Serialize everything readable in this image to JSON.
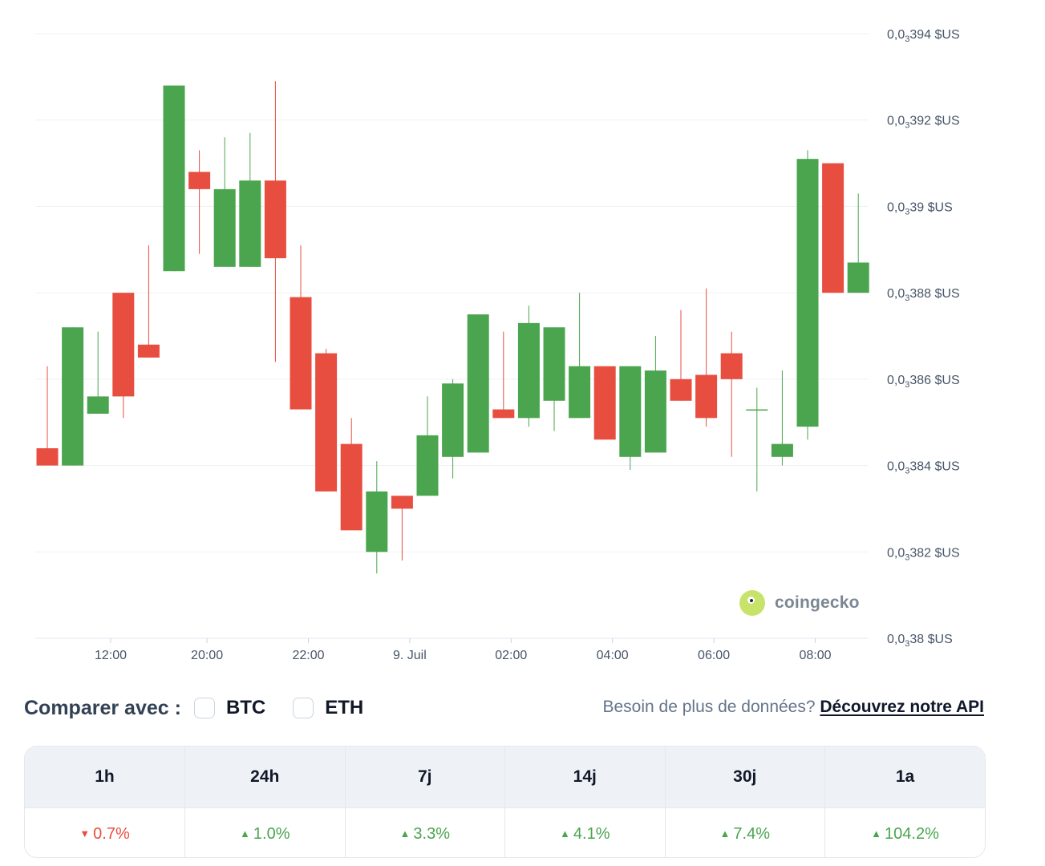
{
  "chart_data": {
    "type": "candlestick",
    "y_axis": {
      "labels": [
        {
          "value": 0.03394,
          "text": "0,0",
          "sub": "3",
          "rest": "394 $US"
        },
        {
          "value": 0.03392,
          "text": "0,0",
          "sub": "3",
          "rest": "392 $US"
        },
        {
          "value": 0.0339,
          "text": "0,0",
          "sub": "3",
          "rest": "39 $US"
        },
        {
          "value": 0.03388,
          "text": "0,0",
          "sub": "3",
          "rest": "388 $US"
        },
        {
          "value": 0.03386,
          "text": "0,0",
          "sub": "3",
          "rest": "386 $US"
        },
        {
          "value": 0.03384,
          "text": "0,0",
          "sub": "3",
          "rest": "384 $US"
        },
        {
          "value": 0.03382,
          "text": "0,0",
          "sub": "3",
          "rest": "382 $US"
        },
        {
          "value": 0.0338,
          "text": "0,0",
          "sub": "3",
          "rest": "38 $US"
        }
      ],
      "range": [
        0.0338,
        0.03394
      ]
    },
    "x_axis": {
      "ticks": [
        {
          "label": "12:00",
          "index": 2.5
        },
        {
          "label": "20:00",
          "index": 6.3
        },
        {
          "label": "22:00",
          "index": 10.3
        },
        {
          "label": "9. Juil",
          "index": 14.3
        },
        {
          "label": "02:00",
          "index": 18.3
        },
        {
          "label": "04:00",
          "index": 22.3
        },
        {
          "label": "06:00",
          "index": 26.3
        },
        {
          "label": "08:00",
          "index": 30.3
        }
      ]
    },
    "candles": [
      {
        "o": 0.033844,
        "c": 0.03384,
        "h": 0.033863,
        "l": 0.03384
      },
      {
        "o": 0.03384,
        "c": 0.033872,
        "h": 0.033872,
        "l": 0.03384
      },
      {
        "o": 0.033852,
        "c": 0.033856,
        "h": 0.033871,
        "l": 0.033852
      },
      {
        "o": 0.03388,
        "c": 0.033856,
        "h": 0.03388,
        "l": 0.033851
      },
      {
        "o": 0.033868,
        "c": 0.033865,
        "h": 0.033891,
        "l": 0.033865
      },
      {
        "o": 0.033885,
        "c": 0.033928,
        "h": 0.033928,
        "l": 0.033885
      },
      {
        "o": 0.033908,
        "c": 0.033904,
        "h": 0.033913,
        "l": 0.033889
      },
      {
        "o": 0.033886,
        "c": 0.033904,
        "h": 0.033916,
        "l": 0.033886
      },
      {
        "o": 0.033886,
        "c": 0.033906,
        "h": 0.033917,
        "l": 0.033886
      },
      {
        "o": 0.033906,
        "c": 0.033888,
        "h": 0.033929,
        "l": 0.033864
      },
      {
        "o": 0.033879,
        "c": 0.033853,
        "h": 0.033891,
        "l": 0.033853
      },
      {
        "o": 0.033866,
        "c": 0.033834,
        "h": 0.033867,
        "l": 0.033834
      },
      {
        "o": 0.033845,
        "c": 0.033825,
        "h": 0.033851,
        "l": 0.033825
      },
      {
        "o": 0.03382,
        "c": 0.033834,
        "h": 0.033841,
        "l": 0.033815
      },
      {
        "o": 0.033833,
        "c": 0.03383,
        "h": 0.033833,
        "l": 0.033818
      },
      {
        "o": 0.033833,
        "c": 0.033847,
        "h": 0.033856,
        "l": 0.033833
      },
      {
        "o": 0.033842,
        "c": 0.033859,
        "h": 0.03386,
        "l": 0.033837
      },
      {
        "o": 0.033843,
        "c": 0.033875,
        "h": 0.033875,
        "l": 0.033843
      },
      {
        "o": 0.033853,
        "c": 0.033851,
        "h": 0.033871,
        "l": 0.033851
      },
      {
        "o": 0.033851,
        "c": 0.033873,
        "h": 0.033877,
        "l": 0.033849
      },
      {
        "o": 0.033855,
        "c": 0.033872,
        "h": 0.033872,
        "l": 0.033848
      },
      {
        "o": 0.033851,
        "c": 0.033863,
        "h": 0.03388,
        "l": 0.033851
      },
      {
        "o": 0.033863,
        "c": 0.033846,
        "h": 0.033863,
        "l": 0.033846
      },
      {
        "o": 0.033842,
        "c": 0.033863,
        "h": 0.033863,
        "l": 0.033839
      },
      {
        "o": 0.033843,
        "c": 0.033862,
        "h": 0.03387,
        "l": 0.033843
      },
      {
        "o": 0.03386,
        "c": 0.033855,
        "h": 0.033876,
        "l": 0.033855
      },
      {
        "o": 0.033861,
        "c": 0.033851,
        "h": 0.033881,
        "l": 0.033849
      },
      {
        "o": 0.033866,
        "c": 0.03386,
        "h": 0.033871,
        "l": 0.033842
      },
      {
        "o": 0.033853,
        "c": 0.033853,
        "h": 0.033858,
        "l": 0.033834
      },
      {
        "o": 0.033842,
        "c": 0.033845,
        "h": 0.033862,
        "l": 0.03384
      },
      {
        "o": 0.033849,
        "c": 0.033911,
        "h": 0.033913,
        "l": 0.033846
      },
      {
        "o": 0.03391,
        "c": 0.03388,
        "h": 0.03391,
        "l": 0.03388
      },
      {
        "o": 0.03388,
        "c": 0.033887,
        "h": 0.033903,
        "l": 0.03388
      }
    ],
    "colors": {
      "up": "#4aa54e",
      "down": "#e84e40",
      "grid": "#eef1f5",
      "axis": "#e2e8f0",
      "label": "#475569"
    }
  },
  "watermark": {
    "logo_text": "coingecko",
    "icon": "gecko-logo-icon"
  },
  "compare": {
    "label": "Comparer avec :",
    "options": [
      {
        "label": "BTC",
        "checked": false
      },
      {
        "label": "ETH",
        "checked": false
      }
    ]
  },
  "api": {
    "prompt": "Besoin de plus de données?",
    "link": "Découvrez notre API"
  },
  "performance": {
    "headers": [
      "1h",
      "24h",
      "7j",
      "14j",
      "30j",
      "1a"
    ],
    "values": [
      {
        "text": "0.7%",
        "dir": "down"
      },
      {
        "text": "1.0%",
        "dir": "up"
      },
      {
        "text": "3.3%",
        "dir": "up"
      },
      {
        "text": "4.1%",
        "dir": "up"
      },
      {
        "text": "7.4%",
        "dir": "up"
      },
      {
        "text": "104.2%",
        "dir": "up"
      }
    ],
    "colors": {
      "up": "#4aa54e",
      "down": "#e84e40"
    }
  }
}
